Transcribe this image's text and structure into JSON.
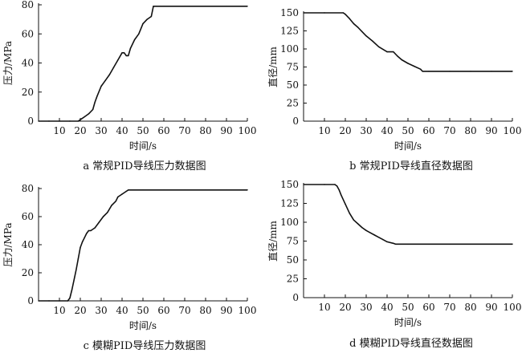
{
  "chart_data": [
    {
      "type": "line",
      "caption": "a 常规PID导线压力数据图",
      "xlabel": "时间/s",
      "ylabel": "压力/MPa",
      "xlim": [
        0,
        100
      ],
      "ylim": [
        0,
        80
      ],
      "xticks": [
        10,
        20,
        30,
        40,
        50,
        60,
        70,
        80,
        90,
        100
      ],
      "yticks": [
        0,
        20,
        40,
        60,
        80
      ],
      "series": [
        {
          "x": [
            0,
            5,
            10,
            15,
            19,
            20,
            22,
            24,
            26,
            27,
            28,
            30,
            32,
            34,
            36,
            38,
            40,
            41,
            42,
            43,
            44,
            46,
            48,
            50,
            52,
            54,
            55,
            56,
            58,
            60,
            70,
            80,
            90,
            100
          ],
          "y": [
            0,
            0,
            0,
            0,
            0,
            1,
            3,
            5,
            8,
            13,
            17,
            24,
            28,
            32,
            37,
            42,
            47,
            47,
            45,
            45,
            50,
            56,
            60,
            67,
            70,
            72,
            79,
            79,
            79,
            79,
            79,
            79,
            79,
            79
          ]
        }
      ]
    },
    {
      "type": "line",
      "caption": "b 常规PID导线直径数据图",
      "xlabel": "时间/s",
      "ylabel": "直径/mm",
      "xlim": [
        0,
        100
      ],
      "ylim": [
        0,
        150
      ],
      "xticks": [
        10,
        20,
        30,
        40,
        50,
        60,
        70,
        80,
        90,
        100
      ],
      "yticks": [
        0,
        25,
        50,
        75,
        100,
        125,
        150
      ],
      "series": [
        {
          "x": [
            0,
            10,
            19,
            20,
            22,
            24,
            26,
            28,
            30,
            33,
            36,
            40,
            43,
            45,
            47,
            50,
            53,
            56,
            57,
            60,
            70,
            80,
            90,
            100
          ],
          "y": [
            150,
            150,
            150,
            148,
            142,
            135,
            130,
            124,
            118,
            111,
            103,
            96,
            96,
            90,
            85,
            80,
            76,
            72,
            69,
            69,
            69,
            69,
            69,
            69
          ]
        }
      ]
    },
    {
      "type": "line",
      "caption": "c 模糊PID导线压力数据图",
      "xlabel": "时间/s",
      "ylabel": "压力/MPa",
      "xlim": [
        0,
        100
      ],
      "ylim": [
        0,
        80
      ],
      "xticks": [
        10,
        20,
        30,
        40,
        50,
        60,
        70,
        80,
        90,
        100
      ],
      "yticks": [
        0,
        20,
        40,
        60,
        80
      ],
      "series": [
        {
          "x": [
            0,
            5,
            10,
            14,
            15,
            16,
            17,
            18,
            19,
            20,
            21,
            22,
            23,
            24,
            25,
            27,
            29,
            31,
            33,
            35,
            37,
            38,
            40,
            42,
            43,
            50,
            60,
            70,
            80,
            90,
            100
          ],
          "y": [
            0,
            0,
            0,
            0,
            2,
            8,
            15,
            22,
            30,
            38,
            42,
            45,
            48,
            50,
            50,
            52,
            56,
            60,
            63,
            68,
            71,
            74,
            76,
            78,
            79,
            79,
            79,
            79,
            79,
            79,
            79
          ]
        }
      ]
    },
    {
      "type": "line",
      "caption": "d 模糊PID导线直径数据图",
      "xlabel": "时间/s",
      "ylabel": "直径/mm",
      "xlim": [
        0,
        100
      ],
      "ylim": [
        0,
        150
      ],
      "xticks": [
        10,
        20,
        30,
        40,
        50,
        60,
        70,
        80,
        90,
        100
      ],
      "yticks": [
        0,
        25,
        50,
        75,
        100,
        125,
        150
      ],
      "series": [
        {
          "x": [
            0,
            10,
            15,
            16,
            17,
            18,
            20,
            22,
            24,
            26,
            28,
            30,
            32,
            34,
            36,
            38,
            40,
            43,
            44,
            50,
            60,
            70,
            80,
            90,
            100
          ],
          "y": [
            150,
            150,
            150,
            148,
            143,
            136,
            124,
            112,
            103,
            98,
            93,
            89,
            86,
            83,
            80,
            77,
            74,
            72,
            71,
            71,
            71,
            71,
            71,
            71,
            71
          ]
        }
      ]
    }
  ]
}
